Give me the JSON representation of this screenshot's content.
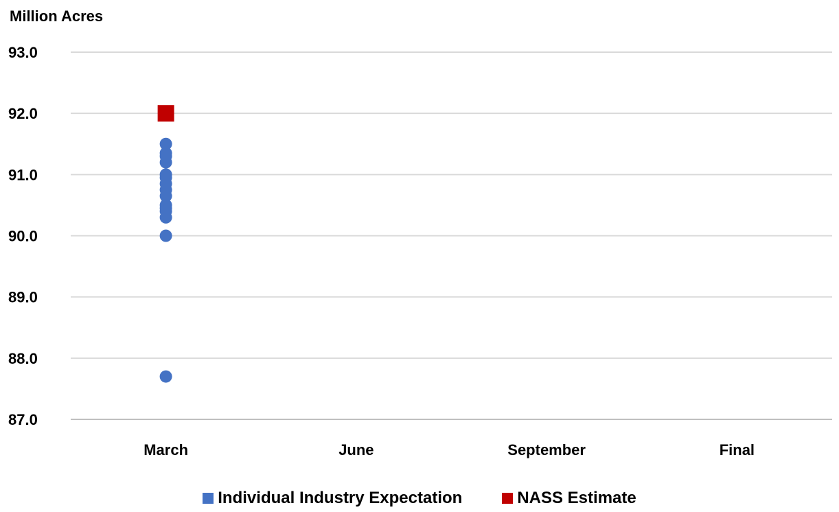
{
  "chart_data": {
    "type": "scatter",
    "ylabel": "Million Acres",
    "ylim": [
      87.0,
      93.0
    ],
    "yticks": [
      "87.0",
      "88.0",
      "89.0",
      "90.0",
      "91.0",
      "92.0",
      "93.0"
    ],
    "categories": [
      "March",
      "June",
      "September",
      "Final"
    ],
    "series": [
      {
        "name": "Individual Industry Expectation",
        "color": "#4472c4",
        "marker": "circle",
        "points": [
          {
            "x": "March",
            "y": 92.0
          },
          {
            "x": "March",
            "y": 91.5
          },
          {
            "x": "March",
            "y": 91.35
          },
          {
            "x": "March",
            "y": 91.3
          },
          {
            "x": "March",
            "y": 91.2
          },
          {
            "x": "March",
            "y": 91.0
          },
          {
            "x": "March",
            "y": 90.95
          },
          {
            "x": "March",
            "y": 90.85
          },
          {
            "x": "March",
            "y": 90.75
          },
          {
            "x": "March",
            "y": 90.65
          },
          {
            "x": "March",
            "y": 90.5
          },
          {
            "x": "March",
            "y": 90.45
          },
          {
            "x": "March",
            "y": 90.4
          },
          {
            "x": "March",
            "y": 90.3
          },
          {
            "x": "March",
            "y": 90.0
          },
          {
            "x": "March",
            "y": 87.7
          }
        ]
      },
      {
        "name": "NASS Estimate",
        "color": "#c00000",
        "marker": "square",
        "points": [
          {
            "x": "March",
            "y": 92.0
          }
        ]
      }
    ],
    "legend_position": "bottom"
  }
}
